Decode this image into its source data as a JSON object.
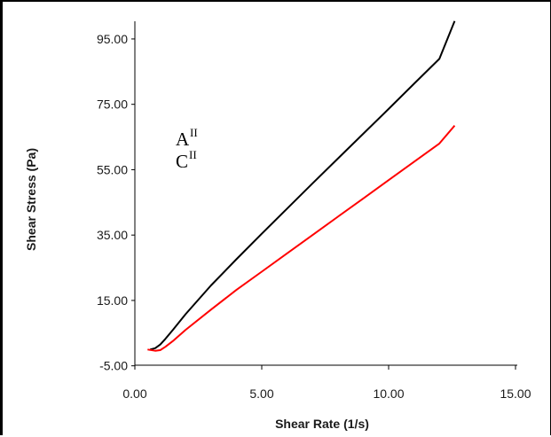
{
  "chart_data": {
    "type": "line",
    "title": "",
    "xlabel": "Shear Rate (1/s)",
    "ylabel": "Shear Stress (Pa)",
    "xlim": [
      0,
      15
    ],
    "ylim": [
      -5,
      105
    ],
    "x_ticks": [
      "0.00",
      "5.00",
      "10.00",
      "15.00"
    ],
    "y_ticks": [
      "-5.00",
      "15.00",
      "35.00",
      "55.00",
      "75.00",
      "95.00"
    ],
    "x_tick_values": [
      0,
      5,
      10,
      15
    ],
    "y_tick_values": [
      -5,
      15,
      35,
      55,
      75,
      95
    ],
    "grid": false,
    "annotations": [
      {
        "base": "A",
        "sup": "II"
      },
      {
        "base": "C",
        "sup": "II"
      }
    ],
    "series": [
      {
        "color": "#000000",
        "x": [
          0.6,
          0.8,
          1.0,
          1.2,
          1.5,
          2.0,
          3.0,
          4.0,
          5.0,
          6.0,
          7.0,
          8.0,
          9.0,
          10.0,
          11.0,
          12.0,
          12.6
        ],
        "y": [
          0,
          0.4,
          1.5,
          3.2,
          6.0,
          10.8,
          19.6,
          27.6,
          35.4,
          43.1,
          50.8,
          58.4,
          66.0,
          73.6,
          81.3,
          88.9,
          100.5
        ]
      },
      {
        "color": "#ff0000",
        "x": [
          0.5,
          0.8,
          1.0,
          1.2,
          1.5,
          2.0,
          3.0,
          4.0,
          5.0,
          6.0,
          7.0,
          8.0,
          9.0,
          10.0,
          11.0,
          12.0,
          12.6
        ],
        "y": [
          0,
          -0.4,
          -0.2,
          0.8,
          2.6,
          6.0,
          12.2,
          18.2,
          23.8,
          29.4,
          35.0,
          40.6,
          46.2,
          51.8,
          57.4,
          63.0,
          68.5
        ]
      }
    ]
  }
}
